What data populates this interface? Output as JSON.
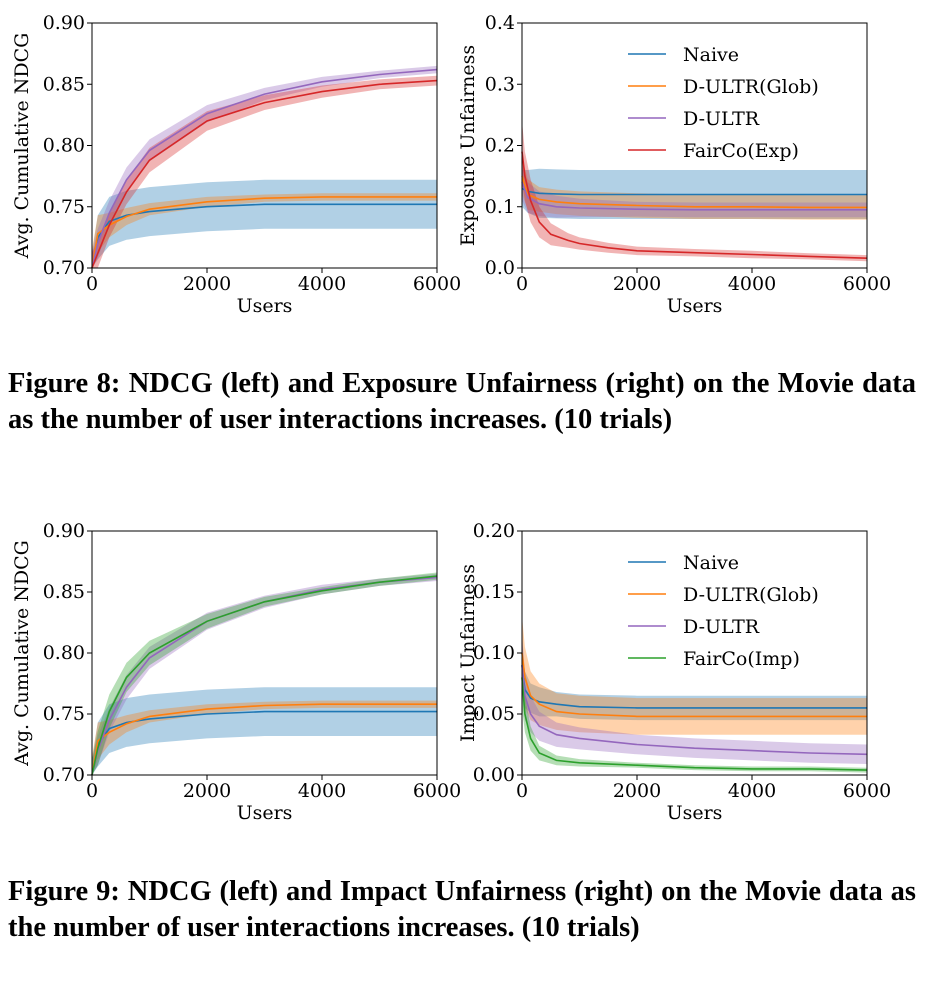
{
  "figures": [
    {
      "caption": "Figure 8: NDCG (left) and Exposure Unfairness (right) on the Movie data as the number of user interactions increases. (10 trials)"
    },
    {
      "caption": "Figure 9: NDCG (left) and Impact Unfairness (right) on the Movie data as the number of user interactions increases. (10 trials)"
    }
  ],
  "colors": {
    "Naive": "#1f77b4",
    "D-ULTR(Glob)": "#ff7f0e",
    "D-ULTR": "#9467bd",
    "FairCo(Exp)": "#d62728",
    "FairCo(Imp)": "#2ca02c"
  },
  "chart_data": [
    {
      "type": "line",
      "xlabel": "Users",
      "ylabel": "Avg. Cumulative NDCG",
      "xlim": [
        0,
        6000
      ],
      "ylim": [
        0.7,
        0.9
      ],
      "xticks": [
        "0",
        "2000",
        "4000",
        "6000"
      ],
      "yticks": [
        "0.70",
        "0.75",
        "0.80",
        "0.85",
        "0.90"
      ],
      "legend": false,
      "series": [
        {
          "name": "Naive",
          "x": [
            0,
            100,
            300,
            600,
            1000,
            2000,
            3000,
            4000,
            5000,
            6000
          ],
          "values": [
            0.7,
            0.725,
            0.738,
            0.743,
            0.746,
            0.75,
            0.752,
            0.752,
            0.752,
            0.752
          ],
          "band": [
            0.012,
            0.018,
            0.02,
            0.02,
            0.02,
            0.02,
            0.02,
            0.02,
            0.02,
            0.02
          ]
        },
        {
          "name": "D-ULTR(Glob)",
          "x": [
            0,
            100,
            300,
            600,
            1000,
            2000,
            3000,
            4000,
            5000,
            6000
          ],
          "values": [
            0.7,
            0.728,
            0.735,
            0.742,
            0.748,
            0.754,
            0.757,
            0.758,
            0.758,
            0.758
          ],
          "band": [
            0.015,
            0.015,
            0.01,
            0.007,
            0.005,
            0.004,
            0.003,
            0.003,
            0.003,
            0.003
          ]
        },
        {
          "name": "D-ULTR",
          "x": [
            0,
            100,
            300,
            600,
            1000,
            2000,
            3000,
            4000,
            5000,
            6000
          ],
          "values": [
            0.7,
            0.72,
            0.745,
            0.772,
            0.796,
            0.826,
            0.842,
            0.852,
            0.858,
            0.862
          ],
          "band": [
            0.012,
            0.012,
            0.01,
            0.01,
            0.009,
            0.007,
            0.005,
            0.004,
            0.003,
            0.003
          ]
        },
        {
          "name": "FairCo(Exp)",
          "x": [
            0,
            100,
            300,
            600,
            1000,
            2000,
            3000,
            4000,
            5000,
            6000
          ],
          "values": [
            0.7,
            0.712,
            0.735,
            0.762,
            0.788,
            0.82,
            0.835,
            0.844,
            0.85,
            0.853
          ],
          "band": [
            0.012,
            0.012,
            0.01,
            0.01,
            0.01,
            0.008,
            0.006,
            0.005,
            0.004,
            0.004
          ]
        }
      ]
    },
    {
      "type": "line",
      "xlabel": "Users",
      "ylabel": "Exposure Unfairness",
      "xlim": [
        0,
        6000
      ],
      "ylim": [
        0.0,
        0.4
      ],
      "xticks": [
        "0",
        "2000",
        "4000",
        "6000"
      ],
      "yticks": [
        "0.0",
        "0.1",
        "0.2",
        "0.3",
        "0.4"
      ],
      "legend": "top-right",
      "series": [
        {
          "name": "Naive",
          "x": [
            0,
            100,
            300,
            600,
            1000,
            2000,
            3000,
            4000,
            5000,
            6000
          ],
          "values": [
            0.13,
            0.125,
            0.122,
            0.121,
            0.12,
            0.12,
            0.12,
            0.12,
            0.12,
            0.12
          ],
          "band": [
            0.03,
            0.035,
            0.04,
            0.04,
            0.04,
            0.04,
            0.04,
            0.04,
            0.04,
            0.04
          ]
        },
        {
          "name": "D-ULTR(Glob)",
          "x": [
            0,
            100,
            300,
            600,
            1000,
            2000,
            3000,
            4000,
            5000,
            6000
          ],
          "values": [
            0.15,
            0.12,
            0.112,
            0.108,
            0.105,
            0.102,
            0.1,
            0.1,
            0.099,
            0.099
          ],
          "band": [
            0.03,
            0.025,
            0.02,
            0.02,
            0.02,
            0.02,
            0.02,
            0.02,
            0.02,
            0.02
          ]
        },
        {
          "name": "D-ULTR",
          "x": [
            0,
            100,
            300,
            600,
            1000,
            2000,
            3000,
            4000,
            5000,
            6000
          ],
          "values": [
            0.14,
            0.115,
            0.105,
            0.1,
            0.098,
            0.096,
            0.095,
            0.095,
            0.095,
            0.095
          ],
          "band": [
            0.03,
            0.025,
            0.02,
            0.018,
            0.015,
            0.012,
            0.012,
            0.012,
            0.012,
            0.012
          ]
        },
        {
          "name": "FairCo(Exp)",
          "x": [
            0,
            50,
            150,
            300,
            500,
            800,
            1000,
            1500,
            2000,
            3000,
            4000,
            5000,
            6000
          ],
          "values": [
            0.19,
            0.15,
            0.11,
            0.075,
            0.055,
            0.045,
            0.04,
            0.033,
            0.028,
            0.025,
            0.022,
            0.019,
            0.016
          ],
          "band": [
            0.05,
            0.04,
            0.035,
            0.025,
            0.018,
            0.012,
            0.01,
            0.008,
            0.007,
            0.006,
            0.006,
            0.005,
            0.005
          ]
        }
      ]
    },
    {
      "type": "line",
      "xlabel": "Users",
      "ylabel": "Avg. Cumulative NDCG",
      "xlim": [
        0,
        6000
      ],
      "ylim": [
        0.7,
        0.9
      ],
      "xticks": [
        "0",
        "2000",
        "4000",
        "6000"
      ],
      "yticks": [
        "0.70",
        "0.75",
        "0.80",
        "0.85",
        "0.90"
      ],
      "legend": false,
      "series": [
        {
          "name": "Naive",
          "x": [
            0,
            100,
            300,
            600,
            1000,
            2000,
            3000,
            4000,
            5000,
            6000
          ],
          "values": [
            0.7,
            0.725,
            0.738,
            0.743,
            0.746,
            0.75,
            0.752,
            0.752,
            0.752,
            0.752
          ],
          "band": [
            0.012,
            0.018,
            0.02,
            0.02,
            0.02,
            0.02,
            0.02,
            0.02,
            0.02,
            0.02
          ]
        },
        {
          "name": "D-ULTR(Glob)",
          "x": [
            0,
            100,
            300,
            600,
            1000,
            2000,
            3000,
            4000,
            5000,
            6000
          ],
          "values": [
            0.7,
            0.728,
            0.735,
            0.742,
            0.748,
            0.754,
            0.757,
            0.758,
            0.758,
            0.758
          ],
          "band": [
            0.015,
            0.015,
            0.01,
            0.007,
            0.005,
            0.004,
            0.003,
            0.003,
            0.003,
            0.003
          ]
        },
        {
          "name": "D-ULTR",
          "x": [
            0,
            100,
            300,
            600,
            1000,
            2000,
            3000,
            4000,
            5000,
            6000
          ],
          "values": [
            0.7,
            0.72,
            0.745,
            0.772,
            0.796,
            0.826,
            0.842,
            0.852,
            0.858,
            0.862
          ],
          "band": [
            0.012,
            0.012,
            0.01,
            0.01,
            0.009,
            0.007,
            0.005,
            0.004,
            0.003,
            0.003
          ]
        },
        {
          "name": "FairCo(Imp)",
          "x": [
            0,
            100,
            300,
            600,
            1000,
            2000,
            3000,
            4000,
            5000,
            6000
          ],
          "values": [
            0.7,
            0.722,
            0.752,
            0.78,
            0.8,
            0.826,
            0.842,
            0.851,
            0.858,
            0.863
          ],
          "band": [
            0.012,
            0.014,
            0.014,
            0.012,
            0.01,
            0.006,
            0.004,
            0.003,
            0.003,
            0.003
          ]
        }
      ]
    },
    {
      "type": "line",
      "xlabel": "Users",
      "ylabel": "Impact Unfairness",
      "xlim": [
        0,
        6000
      ],
      "ylim": [
        0.0,
        0.2
      ],
      "xticks": [
        "0",
        "2000",
        "4000",
        "6000"
      ],
      "yticks": [
        "0.00",
        "0.05",
        "0.10",
        "0.15",
        "0.20"
      ],
      "legend": "top-right",
      "series": [
        {
          "name": "Naive",
          "x": [
            0,
            50,
            150,
            300,
            600,
            1000,
            2000,
            3000,
            4000,
            5000,
            6000
          ],
          "values": [
            0.09,
            0.07,
            0.063,
            0.06,
            0.058,
            0.056,
            0.055,
            0.055,
            0.055,
            0.055,
            0.055
          ],
          "band": [
            0.02,
            0.015,
            0.012,
            0.012,
            0.01,
            0.01,
            0.01,
            0.01,
            0.01,
            0.01,
            0.01
          ]
        },
        {
          "name": "D-ULTR(Glob)",
          "x": [
            0,
            50,
            150,
            300,
            600,
            1000,
            2000,
            3000,
            4000,
            5000,
            6000
          ],
          "values": [
            0.1,
            0.08,
            0.065,
            0.058,
            0.052,
            0.05,
            0.048,
            0.048,
            0.048,
            0.048,
            0.048
          ],
          "band": [
            0.03,
            0.025,
            0.02,
            0.017,
            0.015,
            0.015,
            0.015,
            0.015,
            0.015,
            0.015,
            0.015
          ]
        },
        {
          "name": "D-ULTR",
          "x": [
            0,
            50,
            150,
            300,
            600,
            1000,
            2000,
            3000,
            4000,
            5000,
            6000
          ],
          "values": [
            0.09,
            0.065,
            0.05,
            0.04,
            0.033,
            0.03,
            0.025,
            0.022,
            0.02,
            0.018,
            0.017
          ],
          "band": [
            0.025,
            0.02,
            0.015,
            0.012,
            0.01,
            0.009,
            0.008,
            0.008,
            0.008,
            0.008,
            0.008
          ]
        },
        {
          "name": "FairCo(Imp)",
          "x": [
            0,
            50,
            150,
            300,
            600,
            1000,
            2000,
            3000,
            4000,
            5000,
            6000
          ],
          "values": [
            0.08,
            0.05,
            0.03,
            0.018,
            0.012,
            0.01,
            0.008,
            0.006,
            0.005,
            0.005,
            0.004
          ],
          "band": [
            0.025,
            0.015,
            0.01,
            0.006,
            0.004,
            0.003,
            0.002,
            0.002,
            0.002,
            0.002,
            0.002
          ]
        }
      ]
    }
  ]
}
